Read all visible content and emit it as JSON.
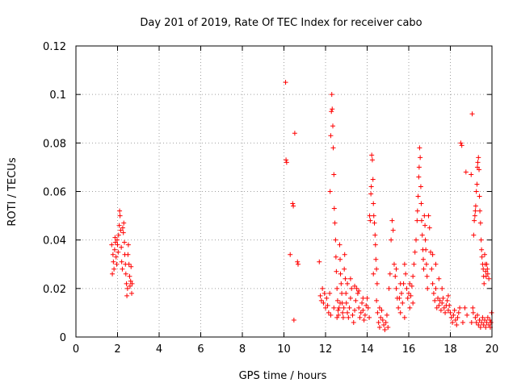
{
  "chart_data": {
    "type": "scatter",
    "title": "Day 201 of 2019, Rate Of TEC Index for receiver cabo",
    "xlabel": "GPS time / hours",
    "ylabel": "ROTI / TECUs",
    "xlim": [
      0,
      20
    ],
    "ylim": [
      0,
      0.12
    ],
    "x_ticks": [
      "0",
      "2",
      "4",
      "6",
      "8",
      "10",
      "12",
      "14",
      "16",
      "18",
      "20"
    ],
    "y_ticks": [
      "0",
      "0.02",
      "0.04",
      "0.06",
      "0.08",
      "0.1",
      "0.12"
    ],
    "grid": true,
    "marker": "+",
    "marker_color": "#ff0000",
    "series": [
      {
        "name": "ROTI",
        "points": [
          [
            1.72,
            0.038
          ],
          [
            1.75,
            0.026
          ],
          [
            1.78,
            0.034
          ],
          [
            1.8,
            0.031
          ],
          [
            1.83,
            0.028
          ],
          [
            1.86,
            0.036
          ],
          [
            1.88,
            0.041
          ],
          [
            1.9,
            0.039
          ],
          [
            1.93,
            0.033
          ],
          [
            1.96,
            0.03
          ],
          [
            1.98,
            0.04
          ],
          [
            2.0,
            0.038
          ],
          [
            2.03,
            0.035
          ],
          [
            2.05,
            0.042
          ],
          [
            2.08,
            0.046
          ],
          [
            2.1,
            0.052
          ],
          [
            2.12,
            0.05
          ],
          [
            2.15,
            0.044
          ],
          [
            2.18,
            0.037
          ],
          [
            2.2,
            0.031
          ],
          [
            2.23,
            0.028
          ],
          [
            2.25,
            0.045
          ],
          [
            2.28,
            0.043
          ],
          [
            2.3,
            0.047
          ],
          [
            2.33,
            0.039
          ],
          [
            2.35,
            0.034
          ],
          [
            2.38,
            0.03
          ],
          [
            2.4,
            0.026
          ],
          [
            2.43,
            0.022
          ],
          [
            2.45,
            0.017
          ],
          [
            2.48,
            0.02
          ],
          [
            2.5,
            0.034
          ],
          [
            2.52,
            0.038
          ],
          [
            2.55,
            0.03
          ],
          [
            2.58,
            0.025
          ],
          [
            2.6,
            0.021
          ],
          [
            2.63,
            0.023
          ],
          [
            2.65,
            0.029
          ],
          [
            2.68,
            0.018
          ],
          [
            2.7,
            0.022
          ],
          [
            10.08,
            0.105
          ],
          [
            10.1,
            0.073
          ],
          [
            10.13,
            0.072
          ],
          [
            10.3,
            0.034
          ],
          [
            10.42,
            0.055
          ],
          [
            10.45,
            0.054
          ],
          [
            10.48,
            0.007
          ],
          [
            10.52,
            0.084
          ],
          [
            10.65,
            0.031
          ],
          [
            10.68,
            0.03
          ],
          [
            11.7,
            0.031
          ],
          [
            11.75,
            0.017
          ],
          [
            11.8,
            0.015
          ],
          [
            11.85,
            0.02
          ],
          [
            11.9,
            0.014
          ],
          [
            11.95,
            0.018
          ],
          [
            12.0,
            0.012
          ],
          [
            12.05,
            0.016
          ],
          [
            12.1,
            0.013
          ],
          [
            12.15,
            0.01
          ],
          [
            12.2,
            0.018
          ],
          [
            12.22,
            0.06
          ],
          [
            12.25,
            0.083
          ],
          [
            12.28,
            0.093
          ],
          [
            12.3,
            0.1
          ],
          [
            12.32,
            0.094
          ],
          [
            12.35,
            0.087
          ],
          [
            12.37,
            0.078
          ],
          [
            12.4,
            0.067
          ],
          [
            12.42,
            0.053
          ],
          [
            12.45,
            0.047
          ],
          [
            12.48,
            0.04
          ],
          [
            12.5,
            0.033
          ],
          [
            12.52,
            0.027
          ],
          [
            12.55,
            0.02
          ],
          [
            12.58,
            0.015
          ],
          [
            12.6,
            0.011
          ],
          [
            12.62,
            0.009
          ],
          [
            12.65,
            0.012
          ],
          [
            12.68,
            0.038
          ],
          [
            12.7,
            0.032
          ],
          [
            12.72,
            0.026
          ],
          [
            12.75,
            0.022
          ],
          [
            12.78,
            0.018
          ],
          [
            12.8,
            0.014
          ],
          [
            12.82,
            0.01
          ],
          [
            12.85,
            0.008
          ],
          [
            12.88,
            0.012
          ],
          [
            12.9,
            0.028
          ],
          [
            12.92,
            0.034
          ],
          [
            12.95,
            0.024
          ],
          [
            12.98,
            0.018
          ],
          [
            13.0,
            0.014
          ],
          [
            13.05,
            0.01
          ],
          [
            13.1,
            0.008
          ],
          [
            13.15,
            0.012
          ],
          [
            13.2,
            0.016
          ],
          [
            13.25,
            0.02
          ],
          [
            13.3,
            0.009
          ],
          [
            13.35,
            0.006
          ],
          [
            13.4,
            0.011
          ],
          [
            13.45,
            0.015
          ],
          [
            13.5,
            0.02
          ],
          [
            13.55,
            0.018
          ],
          [
            13.6,
            0.012
          ],
          [
            13.65,
            0.008
          ],
          [
            13.7,
            0.01
          ],
          [
            13.75,
            0.014
          ],
          [
            13.8,
            0.011
          ],
          [
            13.85,
            0.007
          ],
          [
            13.9,
            0.009
          ],
          [
            13.95,
            0.013
          ],
          [
            14.0,
            0.016
          ],
          [
            14.05,
            0.012
          ],
          [
            14.1,
            0.008
          ],
          [
            14.12,
            0.05
          ],
          [
            14.15,
            0.048
          ],
          [
            14.18,
            0.059
          ],
          [
            14.2,
            0.062
          ],
          [
            14.22,
            0.075
          ],
          [
            14.25,
            0.073
          ],
          [
            14.28,
            0.065
          ],
          [
            14.3,
            0.055
          ],
          [
            14.32,
            0.05
          ],
          [
            14.35,
            0.047
          ],
          [
            14.38,
            0.042
          ],
          [
            14.4,
            0.038
          ],
          [
            14.42,
            0.032
          ],
          [
            14.45,
            0.028
          ],
          [
            14.48,
            0.022
          ],
          [
            14.5,
            0.01
          ],
          [
            14.55,
            0.006
          ],
          [
            14.6,
            0.004
          ],
          [
            14.65,
            0.008
          ],
          [
            14.7,
            0.011
          ],
          [
            14.75,
            0.007
          ],
          [
            14.8,
            0.005
          ],
          [
            14.85,
            0.003
          ],
          [
            14.9,
            0.006
          ],
          [
            14.95,
            0.009
          ],
          [
            15.0,
            0.004
          ],
          [
            15.05,
            0.02
          ],
          [
            15.1,
            0.026
          ],
          [
            15.15,
            0.04
          ],
          [
            15.2,
            0.048
          ],
          [
            15.25,
            0.044
          ],
          [
            15.3,
            0.03
          ],
          [
            15.35,
            0.025
          ],
          [
            15.4,
            0.02
          ],
          [
            15.45,
            0.016
          ],
          [
            15.5,
            0.012
          ],
          [
            15.55,
            0.016
          ],
          [
            15.6,
            0.022
          ],
          [
            15.65,
            0.018
          ],
          [
            15.7,
            0.014
          ],
          [
            15.75,
            0.022
          ],
          [
            15.8,
            0.03
          ],
          [
            15.85,
            0.026
          ],
          [
            15.9,
            0.02
          ],
          [
            15.95,
            0.016
          ],
          [
            16.0,
            0.018
          ],
          [
            16.05,
            0.022
          ],
          [
            16.1,
            0.017
          ],
          [
            16.15,
            0.021
          ],
          [
            16.2,
            0.025
          ],
          [
            16.25,
            0.03
          ],
          [
            16.3,
            0.035
          ],
          [
            16.35,
            0.04
          ],
          [
            16.4,
            0.048
          ],
          [
            16.42,
            0.052
          ],
          [
            16.45,
            0.058
          ],
          [
            16.48,
            0.066
          ],
          [
            16.5,
            0.07
          ],
          [
            16.52,
            0.078
          ],
          [
            16.55,
            0.074
          ],
          [
            16.58,
            0.062
          ],
          [
            16.6,
            0.055
          ],
          [
            16.62,
            0.048
          ],
          [
            16.65,
            0.042
          ],
          [
            16.68,
            0.036
          ],
          [
            16.7,
            0.032
          ],
          [
            16.72,
            0.028
          ],
          [
            16.75,
            0.05
          ],
          [
            16.78,
            0.046
          ],
          [
            16.8,
            0.04
          ],
          [
            16.82,
            0.036
          ],
          [
            16.85,
            0.03
          ],
          [
            16.88,
            0.025
          ],
          [
            16.9,
            0.02
          ],
          [
            16.95,
            0.05
          ],
          [
            17.0,
            0.045
          ],
          [
            17.05,
            0.035
          ],
          [
            17.1,
            0.028
          ],
          [
            17.15,
            0.022
          ],
          [
            17.2,
            0.018
          ],
          [
            17.25,
            0.015
          ],
          [
            17.3,
            0.02
          ],
          [
            17.35,
            0.012
          ],
          [
            17.4,
            0.016
          ],
          [
            17.45,
            0.013
          ],
          [
            17.5,
            0.015
          ],
          [
            17.55,
            0.011
          ],
          [
            17.6,
            0.014
          ],
          [
            17.65,
            0.016
          ],
          [
            17.7,
            0.012
          ],
          [
            17.75,
            0.01
          ],
          [
            17.8,
            0.013
          ],
          [
            17.85,
            0.015
          ],
          [
            17.9,
            0.011
          ],
          [
            17.95,
            0.013
          ],
          [
            18.0,
            0.01
          ],
          [
            18.05,
            0.008
          ],
          [
            18.1,
            0.006
          ],
          [
            18.15,
            0.009
          ],
          [
            18.2,
            0.011
          ],
          [
            18.25,
            0.007
          ],
          [
            18.3,
            0.005
          ],
          [
            18.35,
            0.008
          ],
          [
            18.4,
            0.01
          ],
          [
            18.45,
            0.012
          ],
          [
            18.5,
            0.08
          ],
          [
            18.55,
            0.079
          ],
          [
            18.6,
            0.006
          ],
          [
            18.7,
            0.012
          ],
          [
            18.75,
            0.068
          ],
          [
            18.8,
            0.009
          ],
          [
            19.0,
            0.067
          ],
          [
            19.02,
            0.006
          ],
          [
            19.05,
            0.092
          ],
          [
            19.08,
            0.012
          ],
          [
            19.1,
            0.01
          ],
          [
            19.12,
            0.042
          ],
          [
            19.15,
            0.048
          ],
          [
            19.18,
            0.05
          ],
          [
            19.2,
            0.052
          ],
          [
            19.22,
            0.054
          ],
          [
            19.25,
            0.06
          ],
          [
            19.28,
            0.063
          ],
          [
            19.3,
            0.07
          ],
          [
            19.32,
            0.072
          ],
          [
            19.35,
            0.074
          ],
          [
            19.38,
            0.069
          ],
          [
            19.4,
            0.058
          ],
          [
            19.42,
            0.052
          ],
          [
            19.45,
            0.047
          ],
          [
            19.48,
            0.04
          ],
          [
            19.5,
            0.036
          ],
          [
            19.52,
            0.033
          ],
          [
            19.55,
            0.03
          ],
          [
            19.58,
            0.028
          ],
          [
            19.6,
            0.025
          ],
          [
            19.62,
            0.022
          ],
          [
            19.65,
            0.034
          ],
          [
            19.68,
            0.03
          ],
          [
            19.7,
            0.027
          ],
          [
            19.72,
            0.025
          ],
          [
            19.75,
            0.03
          ],
          [
            19.78,
            0.028
          ],
          [
            19.8,
            0.026
          ],
          [
            19.85,
            0.024
          ],
          [
            19.2,
            0.008
          ],
          [
            19.25,
            0.006
          ],
          [
            19.3,
            0.009
          ],
          [
            19.35,
            0.005
          ],
          [
            19.4,
            0.007
          ],
          [
            19.45,
            0.004
          ],
          [
            19.5,
            0.006
          ],
          [
            19.55,
            0.008
          ],
          [
            19.6,
            0.005
          ],
          [
            19.65,
            0.007
          ],
          [
            19.7,
            0.004
          ],
          [
            19.75,
            0.006
          ],
          [
            19.8,
            0.008
          ],
          [
            19.85,
            0.005
          ],
          [
            19.9,
            0.007
          ],
          [
            19.92,
            0.004
          ],
          [
            19.95,
            0.006
          ],
          [
            19.98,
            0.01
          ],
          [
            12.25,
            0.009
          ],
          [
            12.4,
            0.012
          ],
          [
            12.55,
            0.008
          ],
          [
            12.7,
            0.014
          ],
          [
            13.05,
            0.022
          ],
          [
            13.2,
            0.024
          ],
          [
            13.4,
            0.021
          ],
          [
            13.6,
            0.019
          ],
          [
            13.8,
            0.016
          ],
          [
            14.3,
            0.026
          ],
          [
            14.45,
            0.015
          ],
          [
            14.6,
            0.012
          ],
          [
            15.4,
            0.028
          ],
          [
            15.6,
            0.01
          ],
          [
            15.8,
            0.008
          ],
          [
            16.05,
            0.012
          ],
          [
            16.2,
            0.014
          ],
          [
            17.15,
            0.034
          ],
          [
            17.3,
            0.03
          ],
          [
            17.45,
            0.024
          ],
          [
            17.6,
            0.02
          ],
          [
            17.9,
            0.017
          ]
        ]
      }
    ]
  }
}
